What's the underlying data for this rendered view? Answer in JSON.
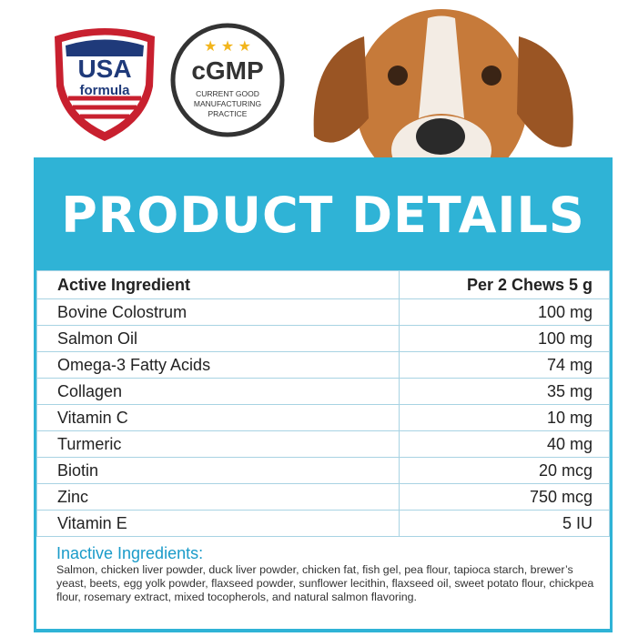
{
  "badges": {
    "usa": {
      "line1": "USA",
      "line2": "formula"
    },
    "cgmp": {
      "title": "cGMP",
      "subtitle": [
        "CURRENT GOOD",
        "MANUFACTURING",
        "PRACTICE"
      ]
    }
  },
  "header": {
    "title": "PRODUCT DETAILS"
  },
  "table": {
    "columns": [
      "Active Ingredient",
      "Per 2 Chews 5 g"
    ],
    "rows": [
      [
        "Bovine Colostrum",
        "100 mg"
      ],
      [
        "Salmon Oil",
        "100 mg"
      ],
      [
        "Omega-3 Fatty Acids",
        "74 mg"
      ],
      [
        "Collagen",
        "35 mg"
      ],
      [
        "Vitamin C",
        "10 mg"
      ],
      [
        "Turmeric",
        "40 mg"
      ],
      [
        "Biotin",
        "20 mcg"
      ],
      [
        "Zinc",
        "750 mcg"
      ],
      [
        "Vitamin E",
        "5 IU"
      ]
    ]
  },
  "inactive": {
    "title": "Inactive Ingredients:",
    "text": "Salmon, chicken liver powder, duck liver powder, chicken fat, fish gel, pea flour, tapioca starch, brewer’s yeast, beets, egg yolk powder, flaxseed powder, sunflower lecithin, flaxseed oil, sweet potato flour, chickpea flour, rosemary extract, mixed tocopherols, and natural salmon flavoring."
  }
}
